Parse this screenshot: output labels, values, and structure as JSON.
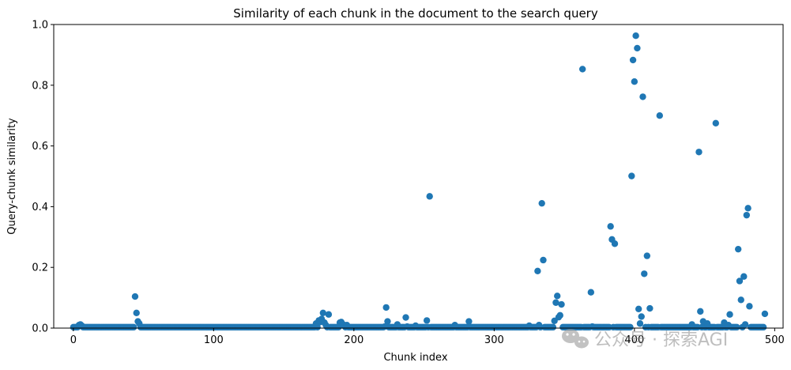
{
  "chart_data": {
    "type": "scatter",
    "title": "Similarity of each chunk in the document to the search query",
    "xlabel": "Chunk index",
    "ylabel": "Query-chunk similarity",
    "xlim": [
      -14,
      506
    ],
    "ylim": [
      0,
      1.0
    ],
    "xticks": [
      0,
      100,
      200,
      300,
      400,
      500
    ],
    "yticks": [
      0.0,
      0.2,
      0.4,
      0.6,
      0.8,
      1.0
    ],
    "xtick_labels": [
      "0",
      "100",
      "200",
      "300",
      "400",
      "500"
    ],
    "ytick_labels": [
      "0.0",
      "0.2",
      "0.4",
      "0.6",
      "0.8",
      "1.0"
    ],
    "grid": false,
    "marker_color": "#1f77b4",
    "baseline_ranges": [
      [
        0,
        493,
        0.003
      ]
    ],
    "series": [
      {
        "x": [
          4,
          5,
          6,
          44,
          45,
          46,
          47,
          173,
          175,
          176,
          177,
          178,
          179,
          180,
          182,
          190,
          191,
          192,
          193,
          195,
          222,
          223,
          224,
          231,
          237,
          238,
          244,
          252,
          254,
          272,
          282,
          325,
          331,
          332,
          334,
          335,
          343,
          344,
          345,
          346,
          347,
          348,
          363,
          369,
          370,
          383,
          384,
          386,
          398,
          399,
          400,
          401,
          402,
          403,
          404,
          405,
          406,
          407,
          409,
          411,
          418,
          441,
          446,
          447,
          449,
          452,
          458,
          464,
          467,
          468,
          474,
          475,
          476,
          478,
          479,
          480,
          481,
          482,
          493
        ],
        "y": [
          0.01,
          0.012,
          0.008,
          0.104,
          0.05,
          0.022,
          0.015,
          0.015,
          0.025,
          0.02,
          0.03,
          0.05,
          0.018,
          0.01,
          0.045,
          0.018,
          0.02,
          0.013,
          0.01,
          0.01,
          0.005,
          0.068,
          0.022,
          0.012,
          0.035,
          0.005,
          0.008,
          0.025,
          0.434,
          0.01,
          0.022,
          0.008,
          0.188,
          0.01,
          0.411,
          0.224,
          0.024,
          0.084,
          0.106,
          0.036,
          0.042,
          0.078,
          0.853,
          0.118,
          0.005,
          0.335,
          0.292,
          0.278,
          0.501,
          0.883,
          0.812,
          0.963,
          0.922,
          0.063,
          0.015,
          0.038,
          0.762,
          0.179,
          0.238,
          0.065,
          0.7,
          0.012,
          0.58,
          0.055,
          0.022,
          0.015,
          0.675,
          0.018,
          0.01,
          0.045,
          0.26,
          0.155,
          0.093,
          0.17,
          0.012,
          0.372,
          0.395,
          0.072,
          0.047
        ]
      }
    ]
  },
  "watermark": {
    "text": "公众号 · 探索AGI"
  }
}
